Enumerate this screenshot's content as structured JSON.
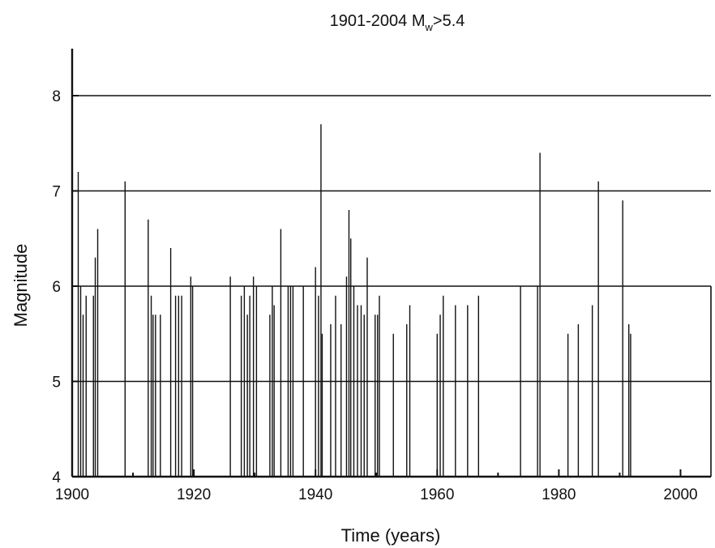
{
  "chart_data": {
    "type": "bar",
    "title": {
      "main": "1901-2004 M",
      "sub": "w",
      "suffix": ">5.4"
    },
    "xlabel": "Time (years)",
    "ylabel": "Magnitude",
    "xlim": [
      1900,
      2005
    ],
    "ylim": [
      4,
      8.5
    ],
    "xticks": [
      1900,
      1920,
      1940,
      1960,
      1980,
      2000
    ],
    "yticks": [
      4,
      5,
      6,
      7,
      8
    ],
    "hlines": [
      5,
      6,
      7,
      8
    ],
    "grid": false,
    "series": [
      {
        "x": [
          1901.0,
          1901.4,
          1901.8,
          1902.3,
          1903.5,
          1903.8,
          1904.2,
          1908.7,
          1912.5,
          1913.0,
          1913.3,
          1913.7,
          1914.5,
          1916.2,
          1917.0,
          1917.5,
          1918.0,
          1919.5,
          1919.8,
          1926.0,
          1927.8,
          1928.3,
          1928.8,
          1929.2,
          1929.8,
          1930.3,
          1932.5,
          1932.9,
          1933.2,
          1934.3,
          1935.5,
          1935.9,
          1936.3,
          1938.0,
          1940.0,
          1940.5,
          1940.9,
          1941.1,
          1942.5,
          1943.3,
          1944.2,
          1945.1,
          1945.5,
          1945.8,
          1946.3,
          1946.9,
          1947.5,
          1948.0,
          1948.5,
          1949.8,
          1950.2,
          1950.5,
          1952.8,
          1955.0,
          1955.5,
          1960.0,
          1960.5,
          1961.0,
          1963.0,
          1965.0,
          1966.8,
          1973.7,
          1976.5,
          1976.9,
          1981.5,
          1983.2,
          1985.5,
          1986.5,
          1990.5,
          1991.5,
          1991.8
        ],
        "y": [
          7.2,
          6.0,
          5.7,
          5.9,
          5.9,
          6.3,
          6.6,
          7.1,
          6.7,
          5.9,
          5.7,
          5.7,
          5.7,
          6.4,
          5.9,
          5.9,
          5.9,
          6.1,
          6.0,
          6.1,
          5.9,
          6.0,
          5.7,
          5.9,
          6.1,
          6.0,
          5.7,
          6.0,
          5.8,
          6.6,
          6.0,
          6.0,
          6.0,
          6.0,
          6.2,
          5.9,
          7.7,
          5.5,
          5.6,
          5.9,
          5.6,
          6.1,
          6.8,
          6.5,
          6.0,
          5.8,
          5.8,
          5.7,
          6.3,
          5.7,
          5.7,
          5.9,
          5.5,
          5.6,
          5.8,
          5.5,
          5.7,
          5.9,
          5.8,
          5.8,
          5.9,
          6.0,
          6.0,
          7.4,
          5.5,
          5.6,
          5.8,
          7.1,
          6.9,
          5.6,
          5.5
        ]
      }
    ]
  }
}
